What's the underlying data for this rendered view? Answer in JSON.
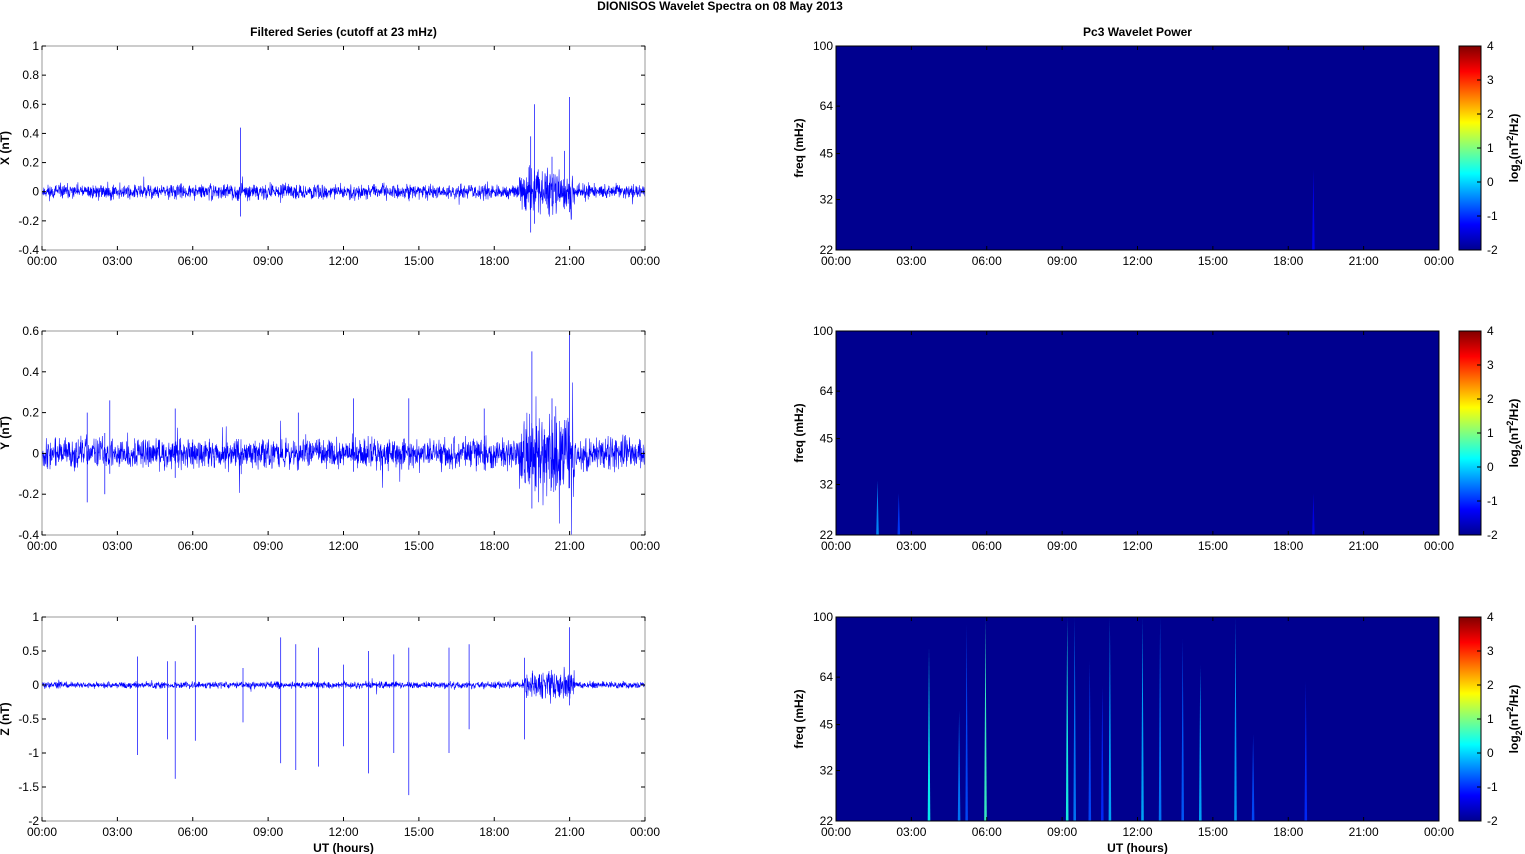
{
  "figure_title": "DIONISOS Wavelet Spectra on 08 May       2013",
  "time_ticks": [
    "00:00",
    "03:00",
    "06:00",
    "09:00",
    "12:00",
    "15:00",
    "18:00",
    "21:00",
    "00:00"
  ],
  "colors": {
    "trace": "#0000ff",
    "background": "#00008f"
  },
  "chart_data": [
    {
      "id": "x-series",
      "type": "line",
      "title": "Filtered Series (cutoff at 23 mHz)",
      "xlabel": "",
      "ylabel": "X (nT)",
      "xlim": [
        0,
        24
      ],
      "ylim": [
        -0.4,
        1
      ],
      "yticks": [
        -0.4,
        -0.2,
        0,
        0.2,
        0.4,
        0.6,
        0.8,
        1
      ],
      "ytick_labels": [
        "-0.4",
        "-0.2",
        "0",
        "0.2",
        "0.4",
        "0.6",
        "0.8",
        "1"
      ],
      "noise": 0.04,
      "bursts": [
        [
          19.0,
          21.2,
          0.08
        ]
      ],
      "spikes": [
        [
          7.9,
          0.44,
          -0.17
        ],
        [
          19.45,
          0.38,
          -0.28
        ],
        [
          19.6,
          0.6,
          -0.22
        ],
        [
          20.3,
          0.24,
          -0.1
        ],
        [
          20.8,
          0.28,
          -0.08
        ],
        [
          21.0,
          0.65,
          -0.14
        ]
      ]
    },
    {
      "id": "y-series",
      "type": "line",
      "title": "",
      "xlabel": "",
      "ylabel": "Y (nT)",
      "xlim": [
        0,
        24
      ],
      "ylim": [
        -0.4,
        0.6
      ],
      "yticks": [
        -0.4,
        -0.2,
        0,
        0.2,
        0.4,
        0.6
      ],
      "ytick_labels": [
        "-0.4",
        "-0.2",
        "0",
        "0.2",
        "0.4",
        "0.6"
      ],
      "noise": 0.06,
      "bursts": [
        [
          19.0,
          21.2,
          0.1
        ]
      ],
      "spikes": [
        [
          1.8,
          0.2,
          -0.24
        ],
        [
          2.5,
          0.1,
          -0.2
        ],
        [
          2.7,
          0.26,
          -0.1
        ],
        [
          5.3,
          0.22,
          -0.12
        ],
        [
          10.2,
          0.2,
          -0.08
        ],
        [
          12.4,
          0.27,
          -0.09
        ],
        [
          14.6,
          0.27,
          -0.08
        ],
        [
          17.6,
          0.22,
          -0.08
        ],
        [
          19.5,
          0.5,
          -0.27
        ],
        [
          20.3,
          0.27,
          -0.1
        ],
        [
          21.0,
          0.6,
          -0.17
        ]
      ]
    },
    {
      "id": "z-series",
      "type": "line",
      "title": "",
      "xlabel": "UT (hours)",
      "ylabel": "Z (nT)",
      "xlim": [
        0,
        24
      ],
      "ylim": [
        -2,
        1
      ],
      "yticks": [
        -2,
        -1.5,
        -1,
        -0.5,
        0,
        0.5,
        1
      ],
      "ytick_labels": [
        "-2",
        "-1.5",
        "-1",
        "-0.5",
        "0",
        "0.5",
        "1"
      ],
      "noise": 0.04,
      "bursts": [
        [
          19.2,
          21.2,
          0.14
        ]
      ],
      "spikes": [
        [
          3.8,
          0.42,
          -1.03
        ],
        [
          5.0,
          0.35,
          -0.8
        ],
        [
          5.3,
          0.35,
          -1.38
        ],
        [
          6.1,
          0.88,
          -0.82
        ],
        [
          8.0,
          0.25,
          -0.55
        ],
        [
          9.5,
          0.7,
          -1.15
        ],
        [
          10.1,
          0.6,
          -1.25
        ],
        [
          11.0,
          0.55,
          -1.2
        ],
        [
          12.0,
          0.3,
          -0.9
        ],
        [
          13.0,
          0.5,
          -1.3
        ],
        [
          14.0,
          0.45,
          -1.0
        ],
        [
          14.6,
          0.55,
          -1.62
        ],
        [
          16.2,
          0.55,
          -1.0
        ],
        [
          17.0,
          0.6,
          -0.65
        ],
        [
          19.2,
          0.4,
          -0.8
        ],
        [
          21.0,
          0.85,
          -0.3
        ]
      ]
    },
    {
      "id": "x-power",
      "type": "heatmap",
      "title": "Pc3 Wavelet Power",
      "xlabel": "",
      "ylabel": "freq (mHz)",
      "xlim": [
        0,
        24
      ],
      "ylim": [
        22,
        100
      ],
      "yscale": "log",
      "yticks": [
        22,
        32,
        45,
        64,
        100
      ],
      "colorbar_label": "log2(nT2/Hz)",
      "clim": [
        -2,
        4
      ],
      "colorbar_ticks": [
        -2,
        -1,
        0,
        1,
        2,
        3,
        4
      ],
      "features": [
        [
          19.0,
          22,
          40,
          -1.3
        ]
      ]
    },
    {
      "id": "y-power",
      "type": "heatmap",
      "title": "",
      "xlabel": "",
      "ylabel": "freq (mHz)",
      "xlim": [
        0,
        24
      ],
      "ylim": [
        22,
        100
      ],
      "yscale": "log",
      "yticks": [
        22,
        32,
        45,
        64,
        100
      ],
      "colorbar_label": "log2(nT2/Hz)",
      "clim": [
        -2,
        4
      ],
      "colorbar_ticks": [
        -2,
        -1,
        0,
        1,
        2,
        3,
        4
      ],
      "features": [
        [
          1.65,
          22,
          33,
          -0.4
        ],
        [
          2.5,
          22,
          30,
          -0.9
        ],
        [
          19.0,
          22,
          30,
          -1.4
        ]
      ]
    },
    {
      "id": "z-power",
      "type": "heatmap",
      "title": "",
      "xlabel": "UT (hours)",
      "ylabel": "freq (mHz)",
      "xlim": [
        0,
        24
      ],
      "ylim": [
        22,
        100
      ],
      "yscale": "log",
      "yticks": [
        22,
        32,
        45,
        64,
        100
      ],
      "colorbar_label": "log2(nT2/Hz)",
      "clim": [
        -2,
        4
      ],
      "colorbar_ticks": [
        -2,
        -1,
        0,
        1,
        2,
        3,
        4
      ],
      "features": [
        [
          3.7,
          22,
          80,
          0.3
        ],
        [
          4.9,
          22,
          50,
          -0.5
        ],
        [
          5.2,
          22,
          95,
          -0.8
        ],
        [
          5.95,
          22,
          100,
          0.6
        ],
        [
          9.2,
          22,
          100,
          0.4
        ],
        [
          9.5,
          22,
          100,
          -0.5
        ],
        [
          10.1,
          22,
          72,
          -0.8
        ],
        [
          10.6,
          22,
          60,
          -1.0
        ],
        [
          10.9,
          22,
          100,
          -0.2
        ],
        [
          12.2,
          22,
          100,
          -0.2
        ],
        [
          12.9,
          22,
          100,
          -0.5
        ],
        [
          13.8,
          22,
          85,
          -0.7
        ],
        [
          14.5,
          22,
          70,
          -0.2
        ],
        [
          15.9,
          22,
          100,
          -0.3
        ],
        [
          16.6,
          22,
          42,
          -0.8
        ],
        [
          18.7,
          22,
          62,
          -1.0
        ]
      ]
    }
  ]
}
